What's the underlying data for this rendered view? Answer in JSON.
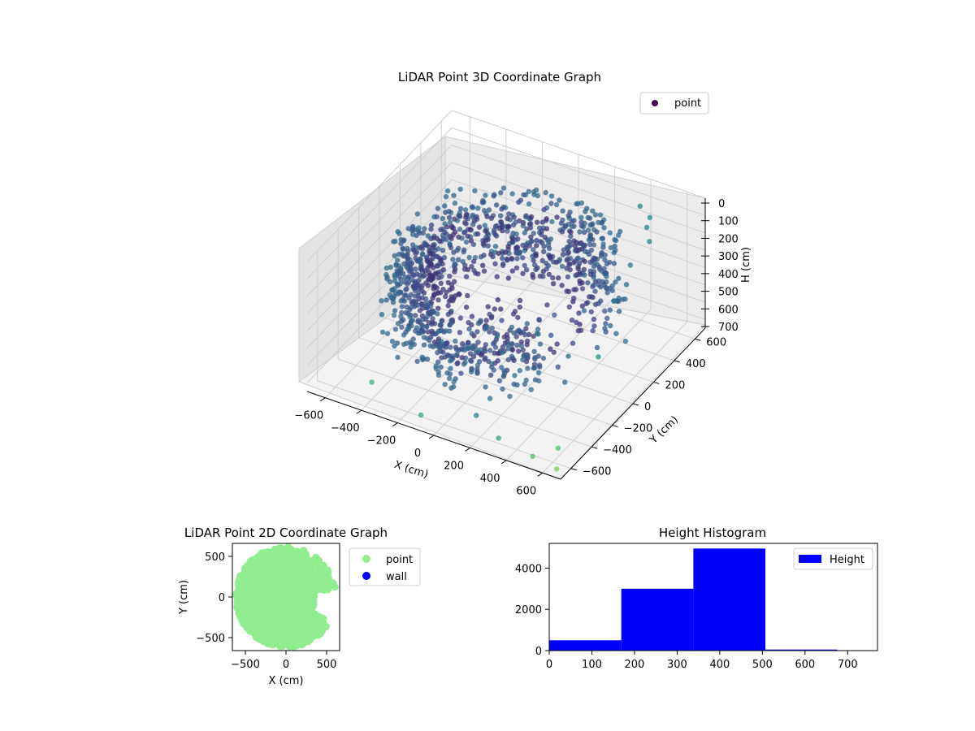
{
  "chart_data": [
    {
      "type": "scatter",
      "title": "LiDAR Point 3D Coordinate Graph",
      "xlabel": "X (cm)",
      "ylabel": "Y (cm)",
      "zlabel": "H (cm)",
      "xlim": [
        -700,
        700
      ],
      "ylim": [
        -700,
        700
      ],
      "zlim": [
        0,
        750
      ],
      "z_axis_inverted": true,
      "xticks": [
        -600,
        -400,
        -200,
        0,
        200,
        400,
        600
      ],
      "yticks": [
        -600,
        -400,
        -200,
        0,
        200,
        400,
        600
      ],
      "zticks": [
        0,
        100,
        200,
        300,
        400,
        500,
        600,
        700
      ],
      "grid": true,
      "colormap": "viridis",
      "legend": {
        "position": "upper-right",
        "entries": [
          {
            "label": "point",
            "color": "#440154"
          }
        ]
      },
      "series": [
        {
          "name": "point",
          "description_ring": {
            "radius_min": 350,
            "radius_max": 600,
            "h_min": 150,
            "h_max": 550,
            "missing_sector_deg": [
              -40,
              40
            ]
          },
          "points": [
            {
              "x": 420,
              "y": 560,
              "h": 60
            },
            {
              "x": 520,
              "y": 480,
              "h": 40
            },
            {
              "x": 560,
              "y": 380,
              "h": 20
            },
            {
              "x": 620,
              "y": 300,
              "h": 30
            },
            {
              "x": 600,
              "y": 150,
              "h": 80
            },
            {
              "x": 640,
              "y": -80,
              "h": 130
            },
            {
              "x": 680,
              "y": -300,
              "h": 300
            },
            {
              "x": 600,
              "y": -550,
              "h": 700
            },
            {
              "x": 300,
              "y": -600,
              "h": 720
            },
            {
              "x": -100,
              "y": -650,
              "h": 700
            },
            {
              "x": -400,
              "y": -600,
              "h": 650
            },
            {
              "x": 200,
              "y": -640,
              "h": 600
            },
            {
              "x": 500,
              "y": -620,
              "h": 740
            },
            {
              "x": 650,
              "y": -650,
              "h": 740
            }
          ]
        }
      ]
    },
    {
      "type": "scatter",
      "title": "LiDAR Point 2D Coordinate Graph",
      "xlabel": "X (cm)",
      "ylabel": "Y (cm)",
      "xlim": [
        -660,
        660
      ],
      "ylim": [
        -660,
        660
      ],
      "xticks": [
        -500,
        0,
        500
      ],
      "yticks": [
        -500,
        0,
        500
      ],
      "legend": {
        "position": "outside-right",
        "entries": [
          {
            "label": "point",
            "color": "#90ee90"
          },
          {
            "label": "wall",
            "color": "#0000ff"
          }
        ]
      },
      "series": [
        {
          "name": "point",
          "color": "#90ee90",
          "region": "disk radius ~620 centered at origin, with cut-outs in upper-right and right sectors"
        },
        {
          "name": "wall",
          "color": "#0000ff",
          "points": []
        }
      ]
    },
    {
      "type": "bar",
      "title": "Height Histogram",
      "xlim": [
        0,
        770
      ],
      "ylim": [
        0,
        5200
      ],
      "xticks": [
        0,
        100,
        200,
        300,
        400,
        500,
        600,
        700
      ],
      "yticks": [
        0,
        2000,
        4000
      ],
      "legend": {
        "position": "upper-right",
        "entries": [
          {
            "label": "Height",
            "color": "#0000ff"
          }
        ]
      },
      "bar_color": "#0000ff",
      "bins": [
        {
          "x0": 0,
          "x1": 169,
          "count": 500
        },
        {
          "x0": 169,
          "x1": 338,
          "count": 3000
        },
        {
          "x0": 338,
          "x1": 507,
          "count": 4950
        },
        {
          "x0": 507,
          "x1": 676,
          "count": 50
        }
      ]
    }
  ]
}
